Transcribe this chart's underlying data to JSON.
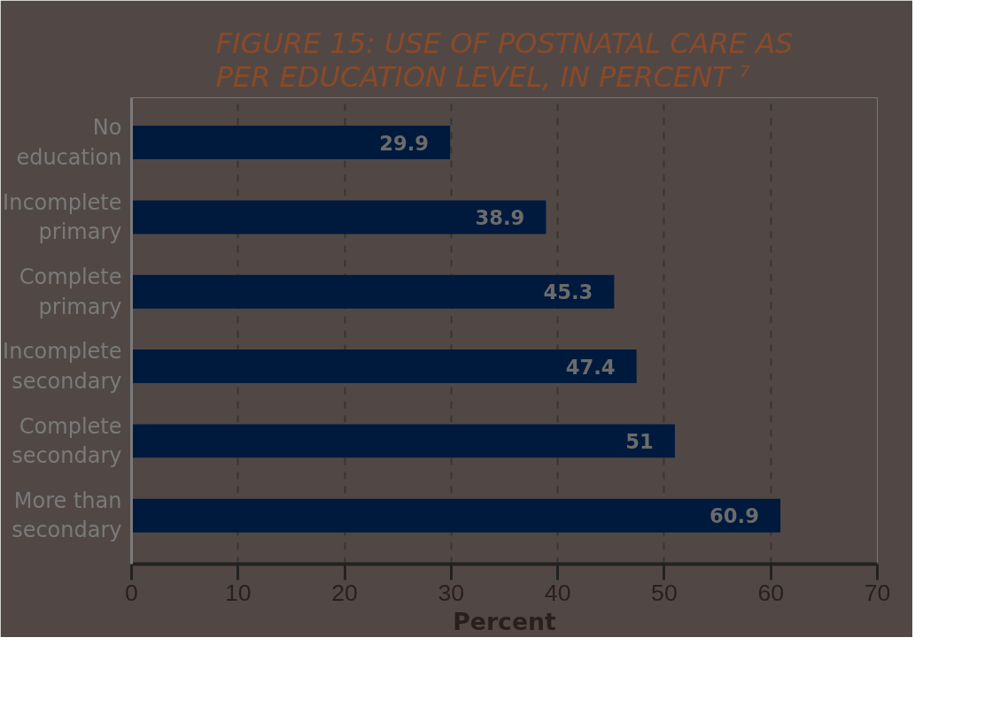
{
  "chart_data": {
    "type": "bar",
    "orientation": "horizontal",
    "title": "FIGURE 15: USE OF POSTNATAL CARE AS PER EDUCATION LEVEL, IN PERCENT ⁷",
    "categories": [
      "No education",
      "Incomplete primary",
      "Complete primary",
      "Incomplete secondary",
      "Complete secondary",
      "More than secondary"
    ],
    "values": [
      29.9,
      38.9,
      45.3,
      47.4,
      51,
      60.9
    ],
    "color": "#001a3d",
    "xlabel": "Percent",
    "xlim": [
      0,
      70
    ],
    "xticks": [
      0,
      10,
      20,
      30,
      40,
      50,
      60,
      70
    ],
    "grid": "x",
    "data_labels": true
  }
}
